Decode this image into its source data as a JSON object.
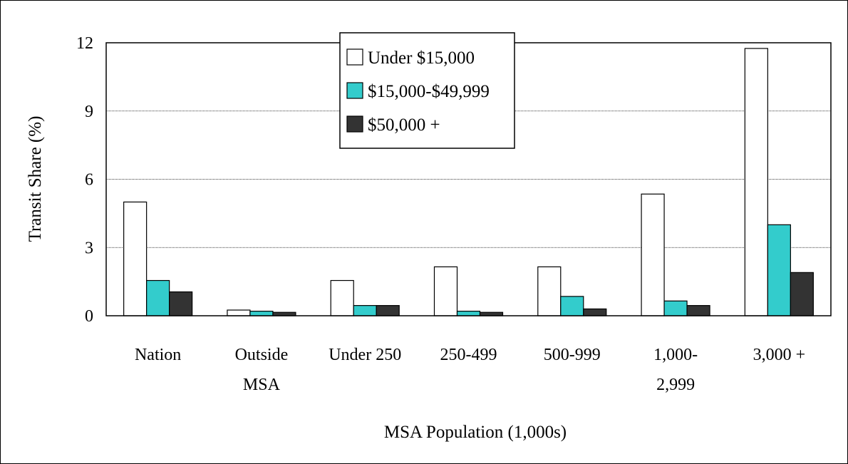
{
  "chart_data": {
    "type": "bar",
    "title": "",
    "xlabel": "MSA Population (1,000s)",
    "ylabel": "Transit Share (%)",
    "ylim": [
      0,
      12
    ],
    "yticks": [
      "0",
      "3",
      "6",
      "9",
      "12"
    ],
    "grid": true,
    "legend_position": "top-center",
    "categories": [
      [
        "Nation"
      ],
      [
        "Outside",
        "MSA"
      ],
      [
        "Under 250"
      ],
      [
        "250-499"
      ],
      [
        "500-999"
      ],
      [
        "1,000-",
        "2,999"
      ],
      [
        "3,000 +"
      ]
    ],
    "series": [
      {
        "name": "Under $15,000",
        "color": "#ffffff",
        "values": [
          5.0,
          0.25,
          1.55,
          2.15,
          2.15,
          5.35,
          11.75
        ]
      },
      {
        "name": "$15,000-$49,999",
        "color": "#33cccc",
        "values": [
          1.55,
          0.2,
          0.45,
          0.2,
          0.85,
          0.65,
          4.0
        ]
      },
      {
        "name": "$50,000 +",
        "color": "#333333",
        "values": [
          1.05,
          0.15,
          0.45,
          0.15,
          0.3,
          0.45,
          1.9
        ]
      }
    ]
  }
}
